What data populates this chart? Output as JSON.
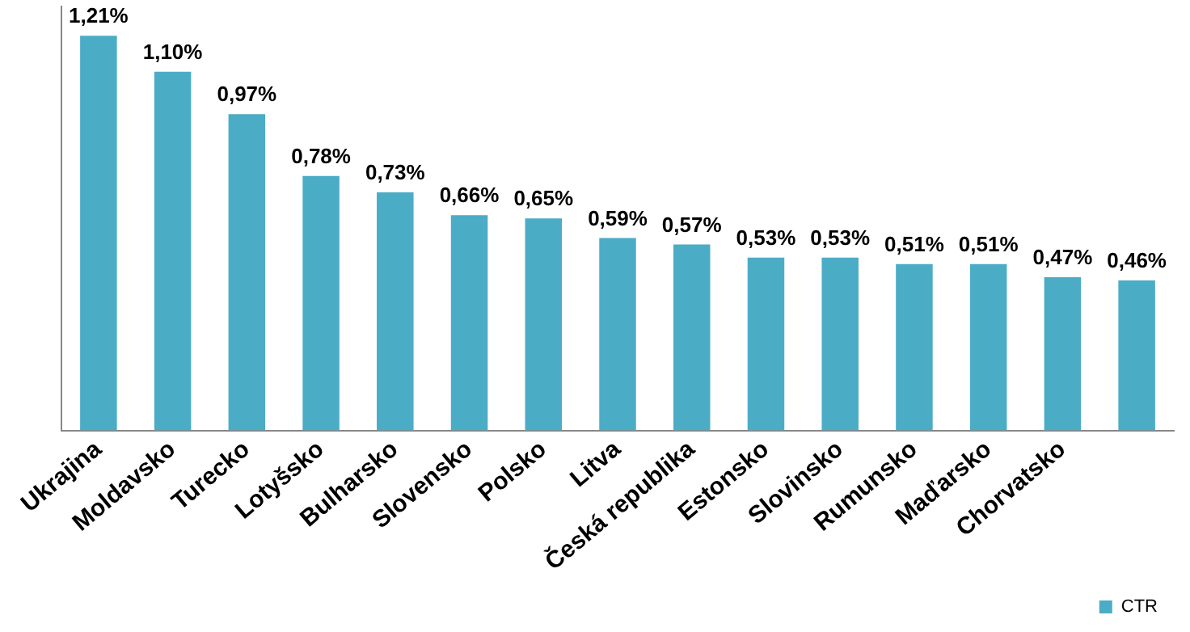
{
  "chart_data": {
    "type": "bar",
    "categories": [
      "Ukrajina",
      "Moldavsko",
      "Turecko",
      "Lotyšsko",
      "Bulharsko",
      "Slovensko",
      "Polsko",
      "Litva",
      "Česká republika",
      "Estonsko",
      "Slovinsko",
      "Rumunsko",
      "Maďarsko",
      "Chorvatsko",
      null
    ],
    "series": [
      {
        "name": "CTR",
        "color": "#4bacc6",
        "values": [
          1.21,
          1.1,
          0.97,
          0.78,
          0.73,
          0.66,
          0.65,
          0.59,
          0.57,
          0.53,
          0.53,
          0.51,
          0.51,
          0.47,
          0.46
        ],
        "value_labels": [
          "1,21%",
          "1,10%",
          "0,97%",
          "0,78%",
          "0,73%",
          "0,66%",
          "0,65%",
          "0,59%",
          "0,57%",
          "0,53%",
          "0,53%",
          "0,51%",
          "0,51%",
          "0,47%",
          "0,46%"
        ]
      }
    ],
    "ylim": [
      0,
      1.3
    ],
    "tick_labels": "x",
    "grid": false,
    "legend": "bottom right"
  }
}
